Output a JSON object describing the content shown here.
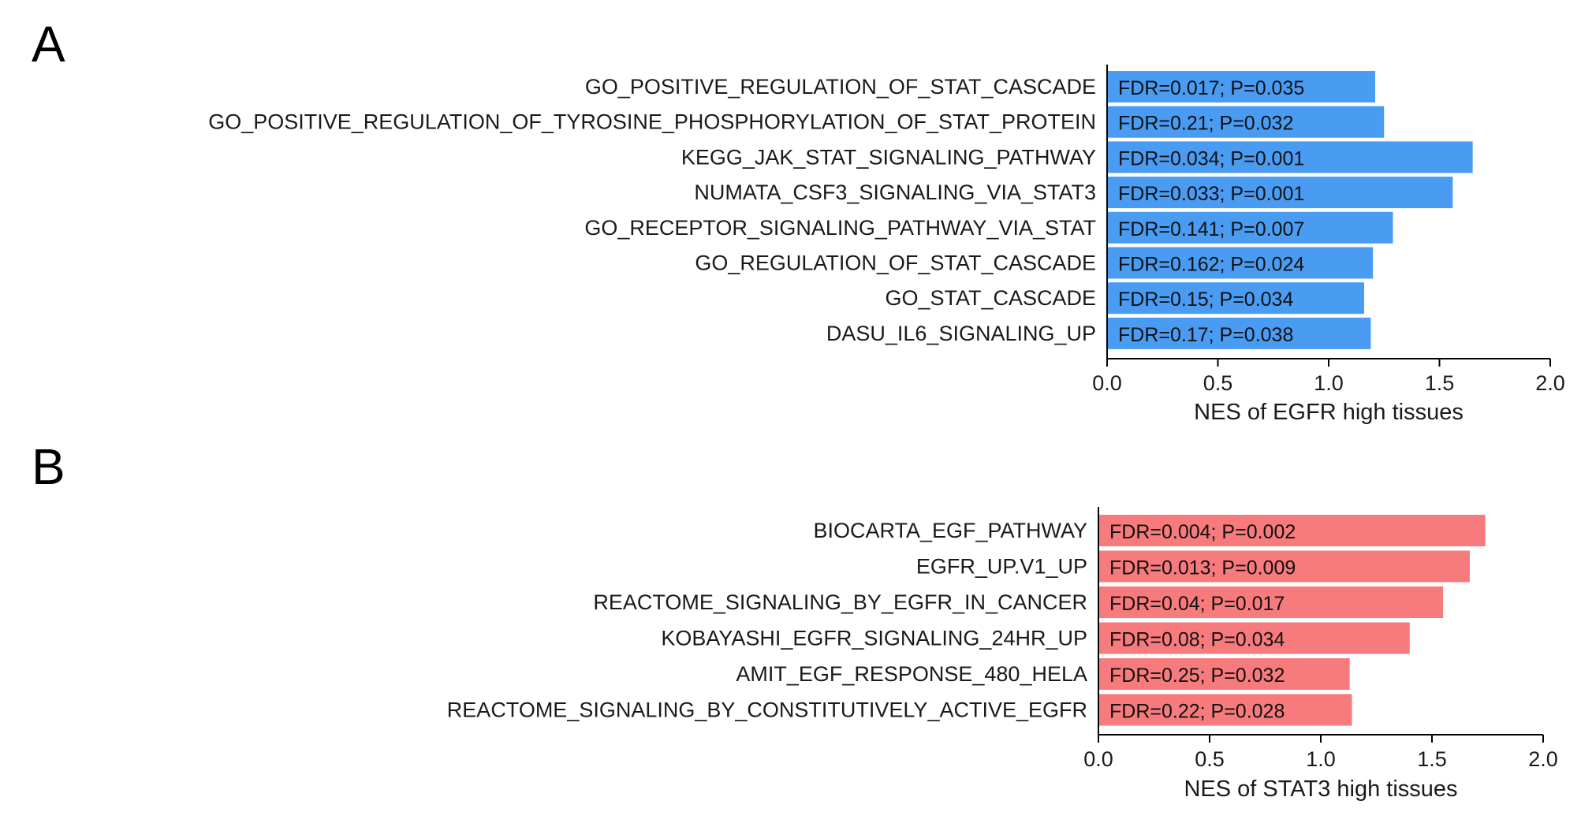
{
  "chart_data": [
    {
      "panel": "A",
      "type": "bar",
      "orientation": "horizontal",
      "categories": [
        "GO_POSITIVE_REGULATION_OF_STAT_CASCADE",
        "GO_POSITIVE_REGULATION_OF_TYROSINE_PHOSPHORYLATION_OF_STAT_PROTEIN",
        "KEGG_JAK_STAT_SIGNALING_PATHWAY",
        "NUMATA_CSF3_SIGNALING_VIA_STAT3",
        "GO_RECEPTOR_SIGNALING_PATHWAY_VIA_STAT",
        "GO_REGULATION_OF_STAT_CASCADE",
        "GO_STAT_CASCADE",
        "DASU_IL6_SIGNALING_UP"
      ],
      "values": [
        1.21,
        1.25,
        1.65,
        1.56,
        1.29,
        1.2,
        1.16,
        1.19
      ],
      "bar_labels": [
        "FDR=0.017; P=0.035",
        "FDR=0.21; P=0.032",
        "FDR=0.034; P=0.001",
        "FDR=0.033; P=0.001",
        "FDR=0.141; P=0.007",
        "FDR=0.162; P=0.024",
        "FDR=0.15; P=0.034",
        "FDR=0.17; P=0.038"
      ],
      "xlabel": "NES of EGFR high tissues",
      "xlim": [
        0,
        2.0
      ],
      "xticks": [
        "0.0",
        "0.5",
        "1.0",
        "1.5",
        "2.0"
      ],
      "color": "#4a9bf2",
      "grid": false
    },
    {
      "panel": "B",
      "type": "bar",
      "orientation": "horizontal",
      "categories": [
        "BIOCARTA_EGF_PATHWAY",
        "EGFR_UP.V1_UP",
        "REACTOME_SIGNALING_BY_EGFR_IN_CANCER",
        "KOBAYASHI_EGFR_SIGNALING_24HR_UP",
        "AMIT_EGF_RESPONSE_480_HELA",
        "REACTOME_SIGNALING_BY_CONSTITUTIVELY_ACTIVE_EGFR"
      ],
      "values": [
        1.74,
        1.67,
        1.55,
        1.4,
        1.13,
        1.14
      ],
      "bar_labels": [
        "FDR=0.004; P=0.002",
        "FDR=0.013; P=0.009",
        "FDR=0.04; P=0.017",
        "FDR=0.08; P=0.034",
        "FDR=0.25; P=0.032",
        "FDR=0.22; P=0.028"
      ],
      "xlabel": "NES of STAT3 high tissues",
      "xlim": [
        0,
        2.0
      ],
      "xticks": [
        "0.0",
        "0.5",
        "1.0",
        "1.5",
        "2.0"
      ],
      "color": "#f77a7c",
      "grid": false
    }
  ]
}
